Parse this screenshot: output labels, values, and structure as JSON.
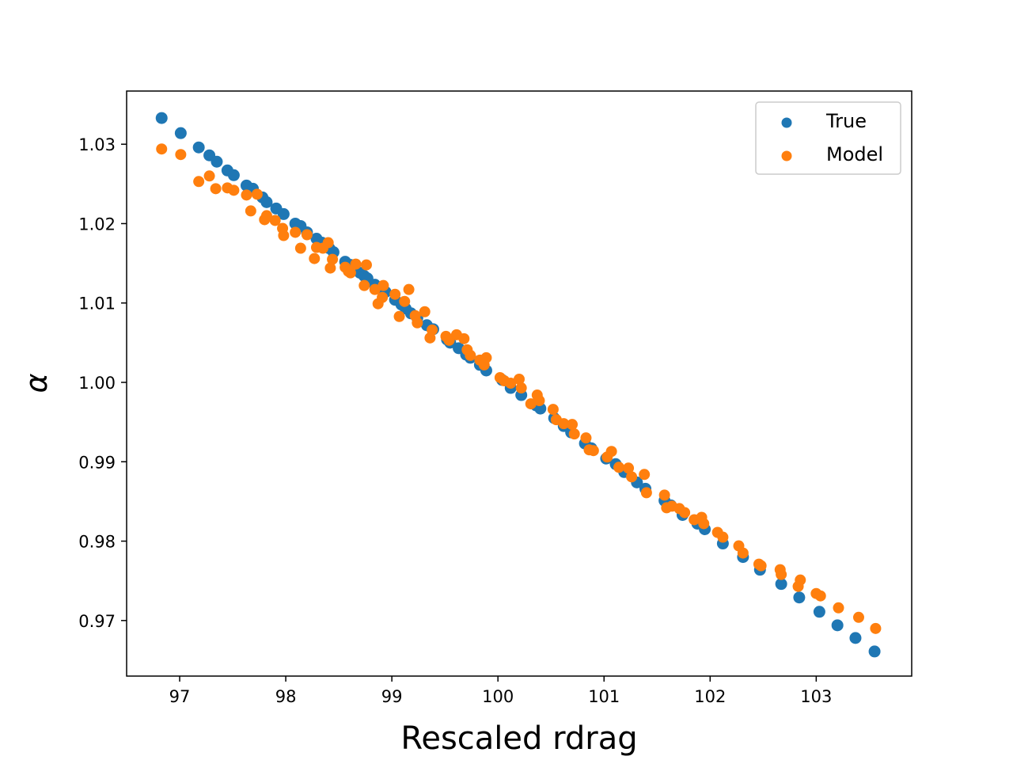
{
  "chart_data": {
    "type": "scatter",
    "title": "",
    "xlabel": "Rescaled rdrag",
    "ylabel": "α",
    "xlim": [
      96.5,
      103.9
    ],
    "ylim": [
      0.963,
      1.0367
    ],
    "xticks": [
      97,
      98,
      99,
      100,
      101,
      102,
      103
    ],
    "xtick_labels": [
      "97",
      "98",
      "99",
      "100",
      "101",
      "102",
      "103"
    ],
    "yticks": [
      0.97,
      0.98,
      0.99,
      1.0,
      1.01,
      1.02,
      1.03
    ],
    "ytick_labels": [
      "0.97",
      "0.98",
      "0.99",
      "1.00",
      "1.01",
      "1.02",
      "1.03"
    ],
    "grid": false,
    "legend_position": "top-right",
    "series": [
      {
        "name": "True",
        "color": "#1f77b4",
        "x": [
          96.83,
          97.01,
          97.18,
          97.28,
          97.35,
          97.45,
          97.51,
          97.63,
          97.69,
          97.78,
          97.82,
          97.91,
          97.98,
          98.09,
          98.14,
          98.2,
          98.29,
          98.34,
          98.41,
          98.45,
          98.56,
          98.61,
          98.7,
          98.74,
          98.77,
          98.84,
          98.9,
          98.94,
          99.03,
          99.09,
          99.13,
          99.18,
          99.24,
          99.33,
          99.39,
          99.52,
          99.55,
          99.63,
          99.7,
          99.74,
          99.83,
          99.89,
          100.04,
          100.12,
          100.22,
          100.36,
          100.4,
          100.53,
          100.62,
          100.69,
          100.82,
          100.88,
          101.02,
          101.11,
          101.19,
          101.31,
          101.39,
          101.57,
          101.63,
          101.74,
          101.88,
          101.95,
          102.12,
          102.31,
          102.47,
          102.67,
          102.84,
          103.03,
          103.2,
          103.37,
          103.55
        ],
        "y": [
          1.0333,
          1.0314,
          1.0296,
          1.0286,
          1.0278,
          1.0267,
          1.0261,
          1.0248,
          1.0244,
          1.0233,
          1.0227,
          1.0219,
          1.0212,
          1.02,
          1.0197,
          1.0189,
          1.0181,
          1.0176,
          1.0169,
          1.0164,
          1.0152,
          1.0148,
          1.0138,
          1.0134,
          1.0131,
          1.0123,
          1.0118,
          1.0114,
          1.0104,
          1.0098,
          1.0093,
          1.0087,
          1.0081,
          1.0072,
          1.0067,
          1.0054,
          1.005,
          1.0043,
          1.0035,
          1.0031,
          1.0022,
          1.0015,
          1.0003,
          0.9993,
          0.9984,
          0.9971,
          0.9967,
          0.9955,
          0.9945,
          0.9937,
          0.9923,
          0.9917,
          0.9904,
          0.9897,
          0.9887,
          0.9874,
          0.9866,
          0.9851,
          0.9845,
          0.9833,
          0.9822,
          0.9815,
          0.9797,
          0.978,
          0.9764,
          0.9746,
          0.9729,
          0.9711,
          0.9694,
          0.9678,
          0.9661
        ]
      },
      {
        "name": "Model",
        "color": "#ff7f0e",
        "x": [
          96.83,
          97.01,
          97.18,
          97.28,
          97.34,
          97.45,
          97.51,
          97.63,
          97.67,
          97.73,
          97.8,
          97.82,
          97.9,
          97.97,
          97.98,
          98.09,
          98.14,
          98.2,
          98.27,
          98.29,
          98.35,
          98.4,
          98.42,
          98.44,
          98.56,
          98.59,
          98.61,
          98.66,
          98.74,
          98.76,
          98.84,
          98.87,
          98.91,
          98.92,
          99.03,
          99.07,
          99.12,
          99.16,
          99.22,
          99.24,
          99.31,
          99.36,
          99.38,
          99.51,
          99.54,
          99.61,
          99.68,
          99.71,
          99.74,
          99.83,
          99.87,
          99.89,
          100.02,
          100.06,
          100.12,
          100.2,
          100.22,
          100.31,
          100.37,
          100.39,
          100.52,
          100.55,
          100.62,
          100.7,
          100.72,
          100.83,
          100.86,
          100.9,
          101.03,
          101.07,
          101.14,
          101.23,
          101.26,
          101.38,
          101.4,
          101.57,
          101.59,
          101.64,
          101.71,
          101.76,
          101.85,
          101.92,
          101.94,
          102.07,
          102.12,
          102.27,
          102.31,
          102.46,
          102.48,
          102.66,
          102.67,
          102.83,
          102.85,
          103.0,
          103.04,
          103.21,
          103.4,
          103.56
        ],
        "y": [
          1.0294,
          1.0287,
          1.0253,
          1.026,
          1.0244,
          1.0245,
          1.0242,
          1.0236,
          1.0216,
          1.0237,
          1.0205,
          1.021,
          1.0204,
          1.0194,
          1.0185,
          1.0189,
          1.0169,
          1.0186,
          1.0156,
          1.017,
          1.0169,
          1.0176,
          1.0144,
          1.0155,
          1.0145,
          1.014,
          1.0138,
          1.0149,
          1.0122,
          1.0148,
          1.0117,
          1.0099,
          1.0107,
          1.0122,
          1.0111,
          1.0083,
          1.0102,
          1.0117,
          1.0084,
          1.0075,
          1.0089,
          1.0056,
          1.0066,
          1.0058,
          1.0053,
          1.006,
          1.0055,
          1.0041,
          1.0034,
          1.0028,
          1.0022,
          1.0031,
          1.0006,
          1.0002,
          0.9999,
          1.0004,
          0.9993,
          0.9973,
          0.9984,
          0.9977,
          0.9966,
          0.9953,
          0.9948,
          0.9947,
          0.9935,
          0.993,
          0.9915,
          0.9914,
          0.9906,
          0.9913,
          0.9893,
          0.9892,
          0.9881,
          0.9884,
          0.9861,
          0.9858,
          0.9842,
          0.9844,
          0.9841,
          0.9836,
          0.9827,
          0.983,
          0.9822,
          0.9811,
          0.9805,
          0.9794,
          0.9785,
          0.9771,
          0.9769,
          0.9764,
          0.9758,
          0.9743,
          0.9751,
          0.9734,
          0.9731,
          0.9716,
          0.9704,
          0.969
        ]
      }
    ]
  }
}
